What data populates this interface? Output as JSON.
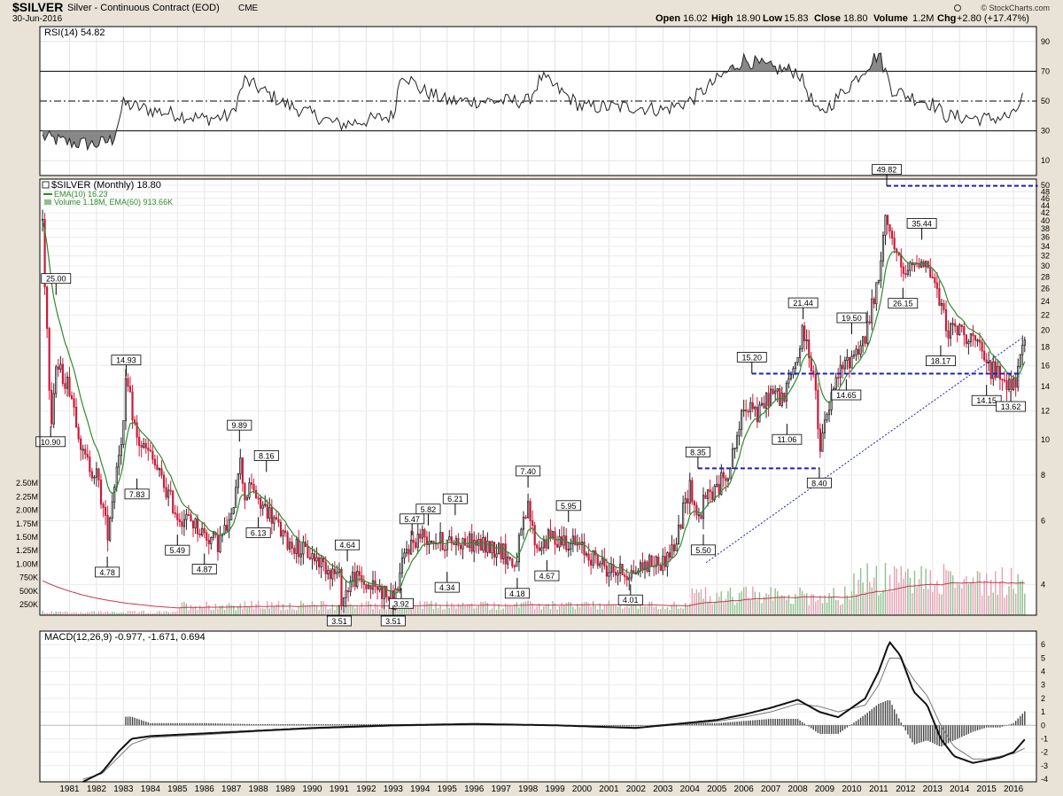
{
  "header": {
    "symbol": "$SILVER",
    "description": "Silver - Continuous Contract (EOD)",
    "exchange": "CME",
    "date": "30-Jun-2016",
    "quote": {
      "open": "16.02",
      "high": "18.90",
      "low": "15.83",
      "close": "18.80",
      "volume": "1.2M",
      "chg": "+2.80 (+17.47%)"
    },
    "quote_labels": {
      "open": "Open",
      "high": "High",
      "low": "Low",
      "close": "Close",
      "volume": "Volume",
      "chg": "Chg"
    },
    "watermark": "© StockCharts.com"
  },
  "colors": {
    "background": "#e8e3d6",
    "panel": "#ffffff",
    "up": "#222222",
    "down": "#cc1a3a",
    "ema": "#2e8b2e",
    "volume_up": "#8fbf8f",
    "volume_down": "#e59fb1",
    "trendline": "#1f1fbf",
    "rsi_fill": "#888888"
  },
  "chart_data": [
    {
      "type": "line",
      "name": "RSI panel",
      "legend": "RSI(14) 54.82",
      "ylim": [
        0,
        100
      ],
      "yticks": [
        10,
        30,
        50,
        70,
        90
      ],
      "reference_lines": [
        30,
        50,
        70
      ],
      "x": [
        1980.0,
        1981.0,
        1982.0,
        1982.6,
        1983.0,
        1984.0,
        1986.0,
        1987.0,
        1987.5,
        1989.0,
        1991.0,
        1993.0,
        1993.3,
        1994.0,
        1995.0,
        1998.0,
        1998.5,
        2000.0,
        2002.0,
        2003.0,
        2004.0,
        2006.0,
        2007.0,
        2008.0,
        2008.8,
        2010.0,
        2011.0,
        2011.5,
        2012.0,
        2013.0,
        2013.5,
        2015.0,
        2016.0,
        2016.4
      ],
      "values": [
        26,
        22,
        21,
        24,
        48,
        44,
        38,
        40,
        64,
        48,
        34,
        40,
        70,
        58,
        50,
        50,
        66,
        46,
        46,
        44,
        50,
        78,
        72,
        70,
        40,
        62,
        82,
        58,
        54,
        48,
        40,
        38,
        40,
        54.82
      ]
    },
    {
      "type": "line",
      "name": "Price panel",
      "legend": "$SILVER (Monthly) 18.80",
      "legend_ema": "EMA(10) 16.23",
      "legend_volume": "Volume 1.18M, EMA(60) 913.66K",
      "scale": "log",
      "ylim": [
        3.3,
        52
      ],
      "yticks": [
        4,
        6,
        8,
        10,
        12,
        14,
        16,
        18,
        20,
        22,
        24,
        26,
        28,
        30,
        32,
        34,
        36,
        38,
        40,
        42,
        44,
        46,
        48,
        50
      ],
      "volume_ticks": [
        "250K",
        "500K",
        "750K",
        "1.00M",
        "1.25M",
        "1.50M",
        "1.75M",
        "2.00M",
        "2.25M",
        "2.50M"
      ],
      "xticks": [
        "1981",
        "1982",
        "1983",
        "1984",
        "1985",
        "1986",
        "1987",
        "1988",
        "1989",
        "1990",
        "1991",
        "1992",
        "1993",
        "1994",
        "1995",
        "1996",
        "1997",
        "1998",
        "1999",
        "2000",
        "2001",
        "2002",
        "2003",
        "2004",
        "2005",
        "2006",
        "2007",
        "2008",
        "2009",
        "2010",
        "2011",
        "2012",
        "2013",
        "2014",
        "2015",
        "2016"
      ],
      "x": [
        1980.0,
        1980.1,
        1980.3,
        1980.5,
        1981.0,
        1981.5,
        1982.0,
        1982.4,
        1982.6,
        1983.0,
        1983.1,
        1983.5,
        1984.0,
        1984.5,
        1985.0,
        1985.5,
        1986.0,
        1986.5,
        1987.0,
        1987.3,
        1987.5,
        1987.8,
        1988.0,
        1988.3,
        1989.0,
        1990.0,
        1990.5,
        1991.0,
        1991.1,
        1991.5,
        1992.0,
        1992.5,
        1993.0,
        1993.1,
        1993.5,
        1994.0,
        1995.0,
        1995.3,
        1996.0,
        1997.0,
        1997.5,
        1998.0,
        1998.3,
        1998.8,
        1999.5,
        2000.0,
        2001.0,
        2001.8,
        2002.5,
        2003.0,
        2003.5,
        2004.0,
        2004.3,
        2004.6,
        2005.0,
        2005.5,
        2006.0,
        2006.3,
        2006.5,
        2007.0,
        2007.5,
        2008.0,
        2008.2,
        2008.6,
        2008.8,
        2009.0,
        2009.5,
        2010.0,
        2010.5,
        2011.0,
        2011.3,
        2011.6,
        2011.9,
        2012.3,
        2012.6,
        2013.0,
        2013.3,
        2013.6,
        2014.0,
        2014.5,
        2015.0,
        2015.5,
        2016.0,
        2016.2,
        2016.45
      ],
      "values": [
        40,
        25,
        10.9,
        16,
        14,
        9,
        8,
        5.5,
        7,
        11,
        14.5,
        10,
        9,
        7.5,
        6.2,
        6,
        5.5,
        5.2,
        6,
        9,
        7,
        7.5,
        6.6,
        6.5,
        5.3,
        4.8,
        4.5,
        4.2,
        3.6,
        4.2,
        4,
        3.9,
        3.6,
        3.8,
        5,
        5.5,
        5.2,
        5.3,
        5.2,
        5,
        4.5,
        6.5,
        5,
        5.4,
        5.3,
        5,
        4.4,
        4.3,
        4.6,
        4.6,
        5.2,
        7.5,
        6,
        7,
        7.3,
        8.5,
        12,
        13,
        11.5,
        13.5,
        13,
        17,
        20,
        15,
        9,
        11,
        15,
        17,
        19,
        27,
        42,
        33,
        28,
        30,
        32,
        28,
        23,
        20,
        20,
        19,
        16,
        15,
        14,
        15.5,
        18.8
      ],
      "volume_mult": [
        0.15,
        0.5,
        1.0,
        1.8
      ],
      "annotations": [
        {
          "label": "49.82",
          "x": 2011.3,
          "y": 49.82,
          "position": "above"
        },
        {
          "label": "35.44",
          "x": 2012.6,
          "y": 35.44,
          "position": "above"
        },
        {
          "label": "26.15",
          "x": 2011.9,
          "y": 26.15,
          "position": "below"
        },
        {
          "label": "25.00",
          "x": 1980.5,
          "y": 25.0,
          "position": "above"
        },
        {
          "label": "21.44",
          "x": 2008.2,
          "y": 21.44,
          "position": "above"
        },
        {
          "label": "19.50",
          "x": 2010.0,
          "y": 19.5,
          "position": "above"
        },
        {
          "label": "18.17",
          "x": 2013.3,
          "y": 18.17,
          "position": "below"
        },
        {
          "label": "15.20",
          "x": 2006.3,
          "y": 15.2,
          "position": "above"
        },
        {
          "label": "14.93",
          "x": 1983.1,
          "y": 14.93,
          "position": "above"
        },
        {
          "label": "14.65",
          "x": 2009.8,
          "y": 14.65,
          "position": "below"
        },
        {
          "label": "14.15",
          "x": 2015.0,
          "y": 14.15,
          "position": "below"
        },
        {
          "label": "13.62",
          "x": 2015.9,
          "y": 13.62,
          "position": "below"
        },
        {
          "label": "11.06",
          "x": 2007.6,
          "y": 11.06,
          "position": "below"
        },
        {
          "label": "10.90",
          "x": 1980.3,
          "y": 10.9,
          "position": "below"
        },
        {
          "label": "9.89",
          "x": 1987.3,
          "y": 9.89,
          "position": "above"
        },
        {
          "label": "8.40",
          "x": 2008.8,
          "y": 8.4,
          "position": "below"
        },
        {
          "label": "8.35",
          "x": 2004.3,
          "y": 8.35,
          "position": "above"
        },
        {
          "label": "8.16",
          "x": 1988.3,
          "y": 8.16,
          "position": "above"
        },
        {
          "label": "7.83",
          "x": 1983.5,
          "y": 7.83,
          "position": "below"
        },
        {
          "label": "7.40",
          "x": 1998.0,
          "y": 7.4,
          "position": "above"
        },
        {
          "label": "6.21",
          "x": 1995.3,
          "y": 6.21,
          "position": "above"
        },
        {
          "label": "6.13",
          "x": 1988.0,
          "y": 6.13,
          "position": "below"
        },
        {
          "label": "5.95",
          "x": 1999.5,
          "y": 5.95,
          "position": "above"
        },
        {
          "label": "5.82",
          "x": 1994.3,
          "y": 5.82,
          "position": "above"
        },
        {
          "label": "5.50",
          "x": 2004.5,
          "y": 5.5,
          "position": "below"
        },
        {
          "label": "5.49",
          "x": 1985.0,
          "y": 5.49,
          "position": "below"
        },
        {
          "label": "5.47",
          "x": 1993.7,
          "y": 5.47,
          "position": "above"
        },
        {
          "label": "4.87",
          "x": 1986.0,
          "y": 4.87,
          "position": "below"
        },
        {
          "label": "4.78",
          "x": 1982.4,
          "y": 4.78,
          "position": "below"
        },
        {
          "label": "4.67",
          "x": 1998.7,
          "y": 4.67,
          "position": "below"
        },
        {
          "label": "4.64",
          "x": 1991.3,
          "y": 4.64,
          "position": "above"
        },
        {
          "label": "4.34",
          "x": 1995.0,
          "y": 4.34,
          "position": "below"
        },
        {
          "label": "4.18",
          "x": 1997.6,
          "y": 4.18,
          "position": "below"
        },
        {
          "label": "4.01",
          "x": 2001.8,
          "y": 4.01,
          "position": "below"
        },
        {
          "label": "3.92",
          "x": 1993.3,
          "y": 3.92,
          "position": "below"
        },
        {
          "label": "3.51",
          "x": 1991.0,
          "y": 3.51,
          "position": "below"
        },
        {
          "label": "3.51",
          "x": 1993.0,
          "y": 3.51,
          "position": "below"
        }
      ],
      "horizontal_lines": [
        {
          "y": 49.82,
          "x_from": 2011.3,
          "x_to": 2016.9
        },
        {
          "y": 15.2,
          "x_from": 2006.3,
          "x_to": 2016.3
        },
        {
          "y": 8.35,
          "x_from": 2004.3,
          "x_to": 2008.8
        }
      ],
      "trendline": {
        "x": [
          2004.6,
          2016.3
        ],
        "y": [
          4.6,
          19.0
        ]
      }
    },
    {
      "type": "line",
      "name": "MACD panel",
      "legend": "MACD(12,26,9) -0.977, -1.671, 0.694",
      "ylim": [
        -4.2,
        7
      ],
      "yticks": [
        -4,
        -3,
        -2,
        -1,
        0,
        1,
        2,
        3,
        4,
        5,
        6
      ],
      "x": [
        1981.5,
        1982.2,
        1982.8,
        1983.3,
        1984.0,
        1986.0,
        1988.0,
        1990.0,
        1993.0,
        1996.0,
        1999.0,
        2002.0,
        2003.0,
        2004.0,
        2005.0,
        2006.0,
        2007.0,
        2008.0,
        2008.8,
        2009.5,
        2010.5,
        2011.0,
        2011.4,
        2011.8,
        2012.3,
        2012.8,
        2013.3,
        2013.8,
        2014.5,
        2015.0,
        2015.5,
        2016.0,
        2016.45
      ],
      "macd": [
        -4.2,
        -3.5,
        -2.0,
        -1.0,
        -0.8,
        -0.6,
        -0.4,
        -0.2,
        0.0,
        0.1,
        0.0,
        -0.2,
        0.0,
        0.2,
        0.4,
        0.8,
        1.3,
        1.9,
        1.0,
        0.6,
        2.0,
        4.0,
        6.2,
        5.2,
        2.5,
        1.5,
        -1.0,
        -2.3,
        -2.8,
        -2.6,
        -2.4,
        -2.0,
        -0.977
      ],
      "signal": [
        -4.0,
        -3.6,
        -2.4,
        -1.4,
        -0.9,
        -0.7,
        -0.45,
        -0.25,
        -0.05,
        0.05,
        0.0,
        -0.15,
        -0.05,
        0.1,
        0.3,
        0.6,
        1.0,
        1.6,
        1.4,
        1.0,
        1.5,
        3.0,
        5.0,
        5.0,
        3.4,
        2.2,
        0.0,
        -1.6,
        -2.5,
        -2.5,
        -2.3,
        -2.1,
        -1.671
      ]
    }
  ]
}
